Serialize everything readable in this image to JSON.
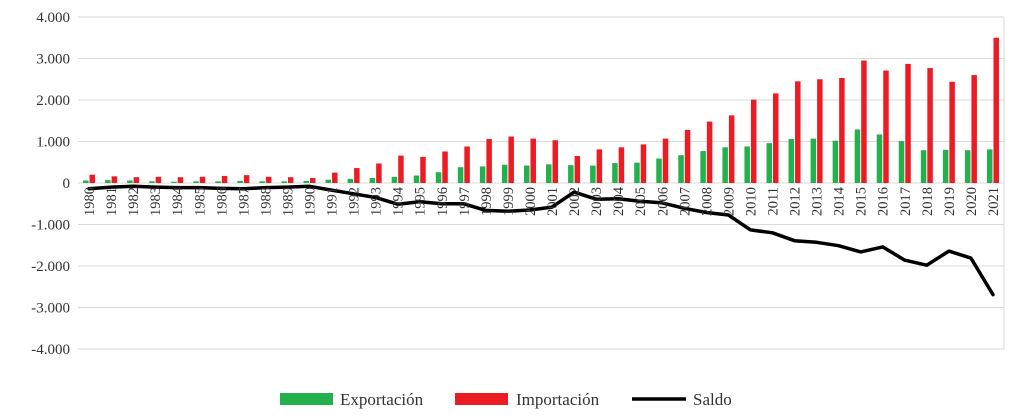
{
  "chart_data": {
    "type": "bar",
    "title": "",
    "xlabel": "",
    "ylabel": "",
    "ylim": [
      -4000,
      4000
    ],
    "yticks": [
      4000,
      3000,
      2000,
      1000,
      0,
      -1000,
      -2000,
      -3000,
      -4000
    ],
    "ytick_labels": [
      "4.000",
      "3.000",
      "2.000",
      "1.000",
      "0",
      "-1.000",
      "-2.000",
      "-3.000",
      "-4.000"
    ],
    "grid": true,
    "legend_position": "bottom",
    "categories": [
      "1980",
      "1981",
      "1982",
      "1983",
      "1984",
      "1985",
      "1986",
      "1987",
      "1988",
      "1989",
      "1990",
      "1991",
      "1992",
      "1993",
      "1994",
      "1995",
      "1996",
      "1997",
      "1998",
      "1999",
      "2000",
      "2001",
      "2002",
      "2003",
      "2004",
      "2005",
      "2006",
      "2007",
      "2008",
      "2009",
      "2010",
      "2011",
      "2012",
      "2013",
      "2014",
      "2015",
      "2016",
      "2017",
      "2018",
      "2019",
      "2020",
      "2021"
    ],
    "series": [
      {
        "name": "Exportación",
        "type": "bar",
        "color": "#22b14c",
        "values": [
          60,
          70,
          60,
          40,
          30,
          40,
          40,
          50,
          40,
          40,
          50,
          80,
          100,
          120,
          150,
          180,
          260,
          380,
          400,
          440,
          420,
          450,
          430,
          420,
          480,
          490,
          590,
          670,
          770,
          860,
          880,
          960,
          1060,
          1070,
          1020,
          1290,
          1170,
          1010,
          790,
          800,
          790,
          810
        ]
      },
      {
        "name": "Importación",
        "type": "bar",
        "color": "#ec1c24",
        "values": [
          200,
          160,
          140,
          150,
          140,
          150,
          170,
          190,
          150,
          140,
          120,
          250,
          360,
          470,
          660,
          630,
          760,
          880,
          1060,
          1120,
          1070,
          1030,
          650,
          810,
          860,
          930,
          1070,
          1280,
          1480,
          1630,
          2010,
          2160,
          2450,
          2500,
          2530,
          2950,
          2710,
          2870,
          2770,
          2440,
          2600,
          3500
        ]
      },
      {
        "name": "Saldo",
        "type": "line",
        "color": "#000000",
        "values": [
          -140,
          -100,
          -80,
          -100,
          -110,
          -110,
          -130,
          -140,
          -110,
          -100,
          -80,
          -170,
          -260,
          -350,
          -510,
          -450,
          -500,
          -500,
          -660,
          -680,
          -650,
          -580,
          -220,
          -390,
          -380,
          -440,
          -480,
          -610,
          -710,
          -770,
          -1130,
          -1200,
          -1390,
          -1430,
          -1510,
          -1660,
          -1540,
          -1860,
          -1980,
          -1640,
          -1810,
          -2690
        ]
      }
    ]
  }
}
